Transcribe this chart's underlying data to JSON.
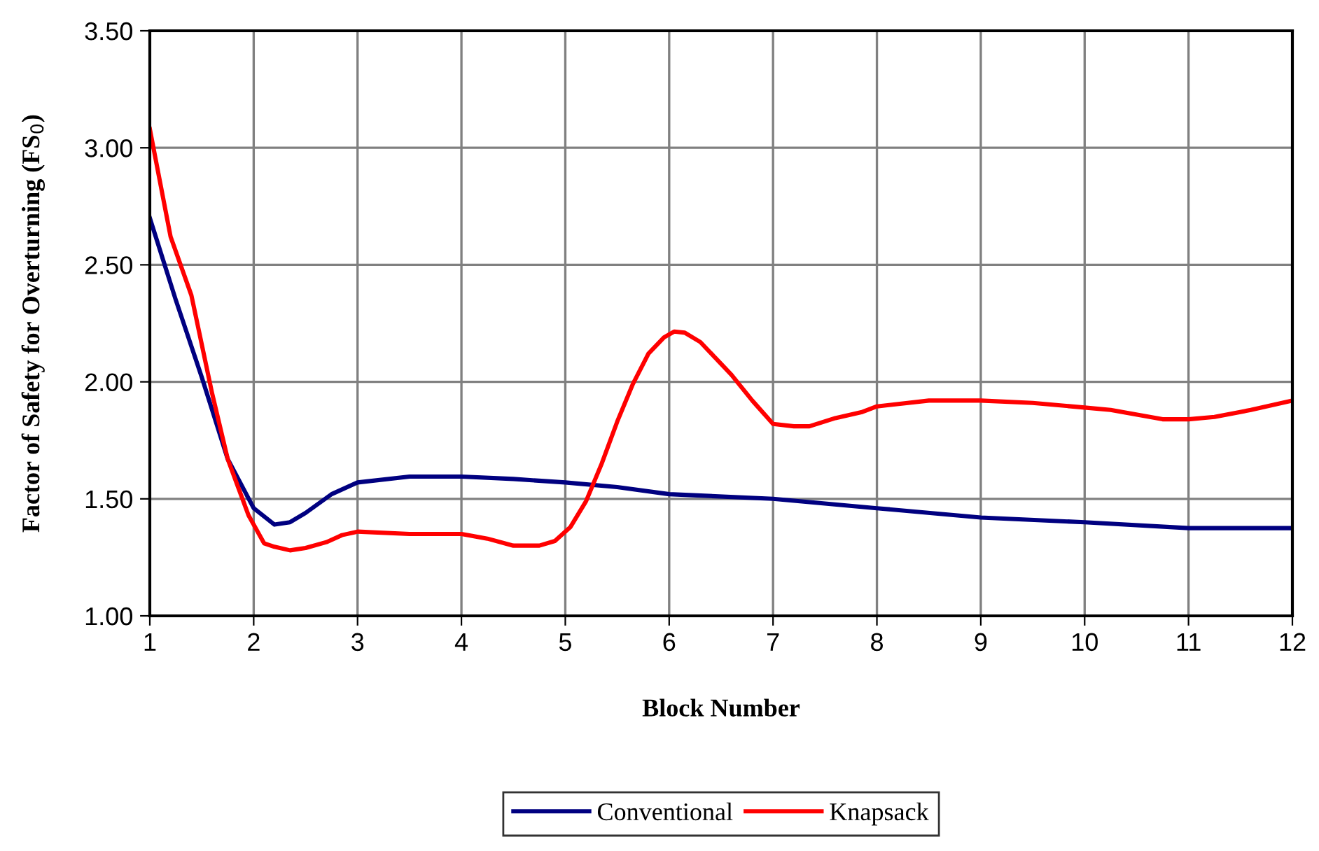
{
  "chart_data": {
    "type": "line",
    "xlabel": "Block Number",
    "ylabel": "Factor of Safety for Overturning (FS$_{0}$)",
    "xlim": [
      1,
      12
    ],
    "xticks": [
      1,
      2,
      3,
      4,
      5,
      6,
      7,
      8,
      9,
      10,
      11,
      12
    ],
    "ylim": [
      1.0,
      3.5
    ],
    "yticks": [
      {
        "value": 1.0,
        "label": "1.00"
      },
      {
        "value": 1.5,
        "label": "1.50"
      },
      {
        "value": 2.0,
        "label": "2.00"
      },
      {
        "value": 2.5,
        "label": "2.50"
      },
      {
        "value": 3.0,
        "label": "3.00"
      },
      {
        "value": 3.5,
        "label": "3.50"
      }
    ],
    "grid": true,
    "legend": "bottom",
    "marker": "none",
    "line_style": "solid",
    "series": [
      {
        "name": "Conventional",
        "color": "#000080",
        "x": [
          1,
          1.25,
          1.5,
          1.75,
          2,
          2.2,
          2.35,
          2.5,
          2.75,
          3,
          3.5,
          4,
          4.5,
          5,
          5.5,
          6,
          7,
          8,
          9,
          10,
          11,
          12
        ],
        "values": [
          2.7,
          2.35,
          2.02,
          1.67,
          1.46,
          1.39,
          1.4,
          1.44,
          1.52,
          1.57,
          1.595,
          1.595,
          1.585,
          1.57,
          1.55,
          1.52,
          1.5,
          1.46,
          1.42,
          1.4,
          1.375,
          1.375
        ]
      },
      {
        "name": "Knapsack",
        "color": "#ff0000",
        "x": [
          1,
          1.2,
          1.4,
          1.6,
          1.75,
          1.85,
          1.95,
          2.1,
          2.2,
          2.35,
          2.5,
          2.7,
          2.85,
          3,
          3.5,
          4,
          4.25,
          4.5,
          4.75,
          4.9,
          5.05,
          5.2,
          5.35,
          5.5,
          5.65,
          5.8,
          5.95,
          6.05,
          6.15,
          6.3,
          6.45,
          6.6,
          6.8,
          7,
          7.2,
          7.35,
          7.6,
          7.85,
          8,
          8.5,
          9,
          9.5,
          10,
          10.25,
          10.75,
          11,
          11.25,
          11.6,
          12
        ],
        "values": [
          3.08,
          2.62,
          2.37,
          1.95,
          1.67,
          1.55,
          1.43,
          1.31,
          1.295,
          1.28,
          1.29,
          1.315,
          1.345,
          1.36,
          1.35,
          1.35,
          1.33,
          1.3,
          1.3,
          1.32,
          1.38,
          1.49,
          1.65,
          1.83,
          1.99,
          2.12,
          2.19,
          2.215,
          2.21,
          2.17,
          2.1,
          2.03,
          1.92,
          1.82,
          1.81,
          1.81,
          1.845,
          1.87,
          1.895,
          1.92,
          1.92,
          1.91,
          1.89,
          1.88,
          1.84,
          1.84,
          1.85,
          1.88,
          1.92
        ]
      }
    ]
  }
}
